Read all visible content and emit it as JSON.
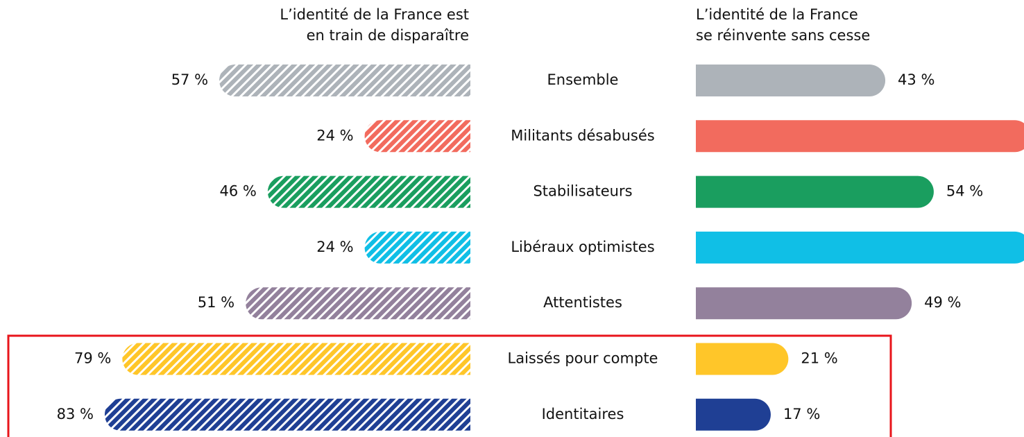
{
  "chart_data": {
    "type": "bar",
    "orientation": "horizontal",
    "categories": [
      "Ensemble",
      "Militants désabusés",
      "Stabilisateurs",
      "Libéraux optimistes",
      "Attentistes",
      "Laissés pour compte",
      "Identitaires"
    ],
    "colors": [
      "#adb3b9",
      "#f26b5e",
      "#1a9e5f",
      "#10bfe6",
      "#93819c",
      "#ffc629",
      "#1f3f94"
    ],
    "series": [
      {
        "name": "L’identité de la France est\nen train de disparaître",
        "hatched": true,
        "values": [
          57,
          24,
          46,
          24,
          51,
          79,
          83
        ],
        "value_labels": [
          "57 %",
          "24 %",
          "46 %",
          "24 %",
          "51 %",
          "79 %",
          "83 %"
        ]
      },
      {
        "name": "L’identité de la France\nse réinvente sans cesse",
        "hatched": false,
        "values": [
          43,
          76,
          54,
          76,
          49,
          21,
          17
        ],
        "value_labels": [
          "43 %",
          null,
          "54 %",
          null,
          "49 %",
          "21 %",
          "17 %"
        ]
      }
    ]
  }
}
